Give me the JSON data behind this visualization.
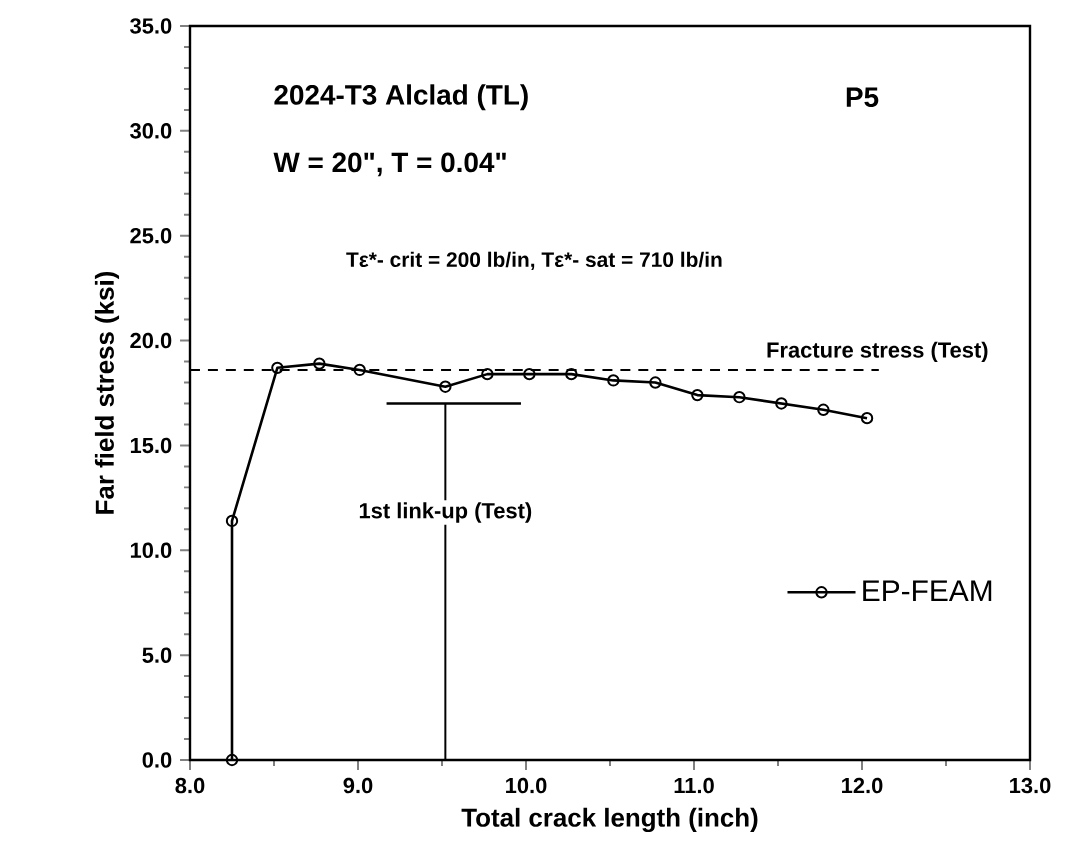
{
  "chart_data": {
    "type": "line",
    "xlabel": "Total crack length (inch)",
    "ylabel": "Far field stress (ksi)",
    "x": [
      8.25,
      8.25,
      8.52,
      8.77,
      9.01,
      9.52,
      9.77,
      10.02,
      10.27,
      10.52,
      10.77,
      11.02,
      11.27,
      11.52,
      11.77,
      12.03
    ],
    "series": [
      {
        "name": "EP-FEAM",
        "color": "#000000",
        "values": [
          0,
          11.4,
          18.7,
          18.9,
          18.6,
          17.8,
          18.4,
          18.4,
          18.4,
          18.1,
          18.0,
          17.4,
          17.3,
          17.0,
          16.7,
          16.3
        ]
      },
      {
        "type": "line",
        "color": "#000000",
        "marker": "none",
        "x": [
          9.17,
          9.97
        ],
        "values": [
          17.0,
          17.0
        ]
      }
    ],
    "marker": "circle",
    "line_style": "solid",
    "legend": "bottom right",
    "grid": false,
    "xlim": [
      8.0,
      13.0
    ],
    "ylim": [
      0,
      35
    ],
    "xticks": [
      {
        "value": 8,
        "label": "8.0"
      },
      {
        "value": 9,
        "label": "9.0"
      },
      {
        "value": 10,
        "label": "10.0"
      },
      {
        "value": 11,
        "label": "11.0"
      },
      {
        "value": 12,
        "label": "12.0"
      },
      {
        "value": 13,
        "label": "13.0"
      }
    ],
    "yticks": [
      {
        "value": 0,
        "label": "0.0"
      },
      {
        "value": 5,
        "label": "5.0"
      },
      {
        "value": 10,
        "label": "10.0"
      },
      {
        "value": 15,
        "label": "15.0"
      },
      {
        "value": 20,
        "label": "20.0"
      },
      {
        "value": 25,
        "label": "25.0"
      },
      {
        "value": 30,
        "label": "30.0"
      },
      {
        "value": 35,
        "label": "35.0"
      }
    ],
    "ref_lines": [
      {
        "axis": "y",
        "value": 18.6,
        "label": "Fracture stress (Test)",
        "line_style": "dashed"
      },
      {
        "axis": "x",
        "value": 9.52,
        "label": "1st link-up (Test)"
      }
    ],
    "annotations": [
      "2024-T3 Alclad (TL)",
      "W = 20\", T = 0.04\"",
      "P5",
      "Tε*- crit = 200 lb/in, Tε*- sat = 710 lb/in"
    ]
  }
}
